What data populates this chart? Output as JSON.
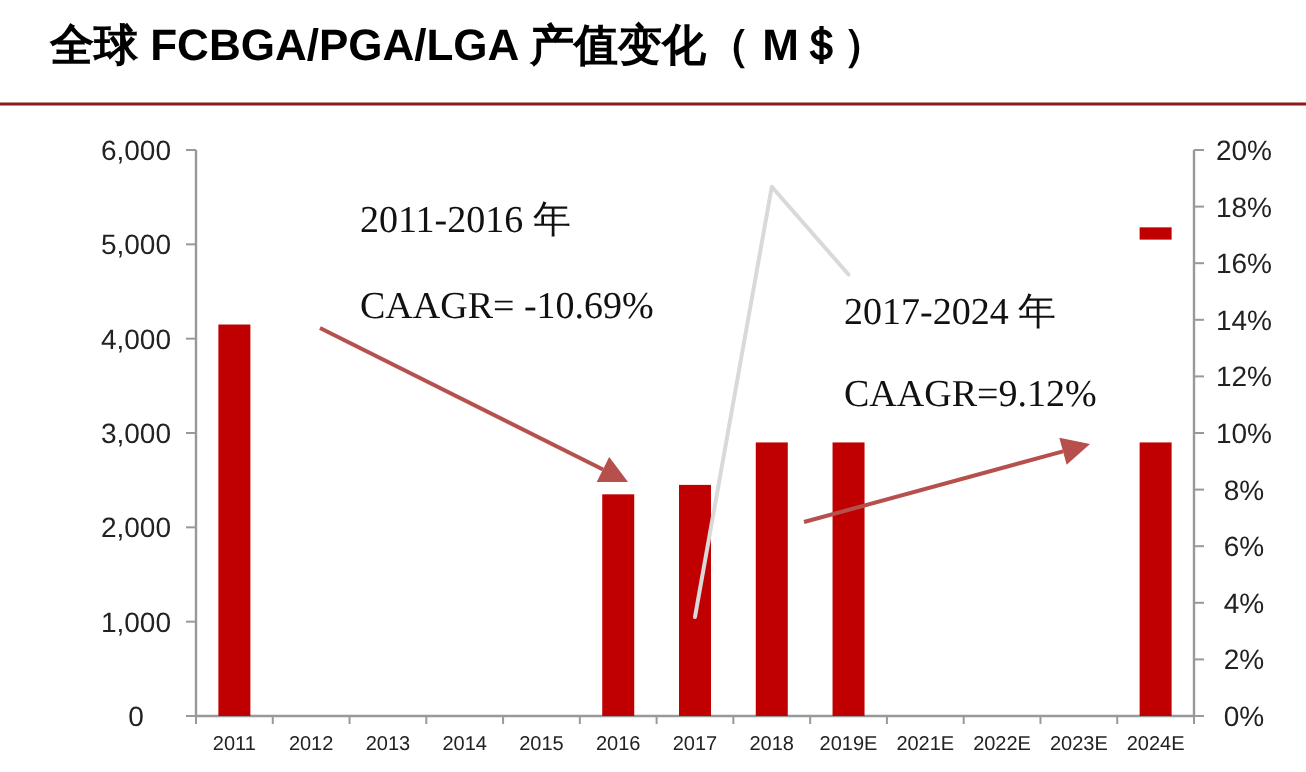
{
  "chart_data": {
    "type": "bar",
    "title": "全球 FCBGA/PGA/LGA 产值变化（ M＄）",
    "categories": [
      "2011",
      "2012",
      "2013",
      "2014",
      "2015",
      "2016",
      "2017",
      "2018",
      "2019E",
      "2021E",
      "2022E",
      "2023E",
      "2024E"
    ],
    "series": [
      {
        "type": "bar",
        "color": "#c00000",
        "values": [
          4150,
          null,
          null,
          null,
          null,
          2350,
          2450,
          2900,
          2900,
          null,
          null,
          null,
          2900
        ]
      },
      {
        "type": "bar",
        "color": "#c00000",
        "values": [
          null,
          null,
          null,
          null,
          null,
          null,
          null,
          null,
          null,
          null,
          null,
          null,
          130
        ],
        "base": [
          null,
          null,
          null,
          null,
          null,
          null,
          null,
          null,
          null,
          null,
          null,
          null,
          5050
        ]
      },
      {
        "type": "line",
        "axis": "y2",
        "color": "#d9d9d9",
        "values": [
          null,
          null,
          null,
          null,
          null,
          null,
          3.5,
          18.7,
          15.6,
          null,
          null,
          null,
          null
        ]
      }
    ],
    "ylim": [
      0,
      6000
    ],
    "yticks": [
      0,
      {
        "value": 1000,
        "label": "1,000"
      },
      {
        "value": 2000,
        "label": "2,000"
      },
      {
        "value": 3000,
        "label": "3,000"
      },
      {
        "value": 4000,
        "label": "4,000"
      },
      {
        "value": 5000,
        "label": "5,000"
      },
      {
        "value": 6000,
        "label": "6,000"
      }
    ],
    "y2lim": [
      0,
      20
    ],
    "y2ticks": [
      {
        "value": 0,
        "label": "0%"
      },
      {
        "value": 2,
        "label": "2%"
      },
      {
        "value": 4,
        "label": "4%"
      },
      {
        "value": 6,
        "label": "6%"
      },
      {
        "value": 8,
        "label": "8%"
      },
      {
        "value": 10,
        "label": "10%"
      },
      {
        "value": 12,
        "label": "12%"
      },
      {
        "value": 14,
        "label": "14%"
      },
      {
        "value": 16,
        "label": "16%"
      },
      {
        "value": 18,
        "label": "18%"
      },
      {
        "value": 20,
        "label": "20%"
      }
    ],
    "annotations": [
      "2011-2016 年",
      "CAAGR= -10.69%",
      "2017-2024 年",
      "CAAGR=9.12%"
    ]
  }
}
